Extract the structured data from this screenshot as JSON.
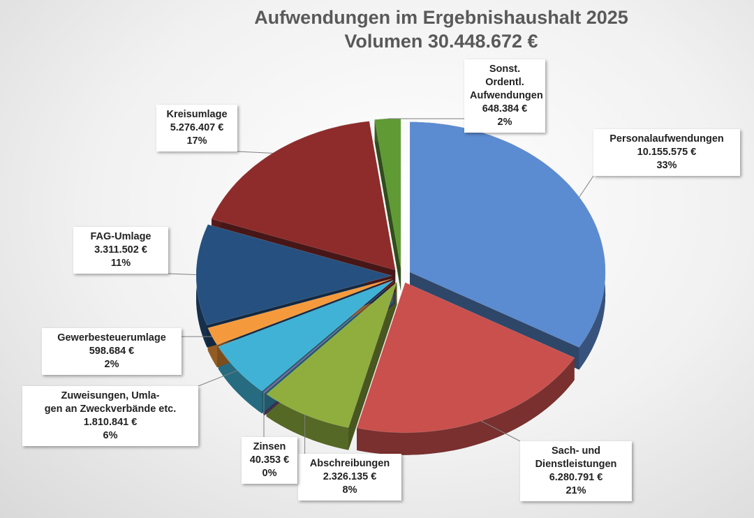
{
  "chart_data": {
    "type": "pie3d",
    "title": "Aufwendungen im Ergebnishaushalt 2025",
    "subtitle": "Volumen 30.448.672 €",
    "categories": [
      "Personalaufwendungen",
      "Sach- und\nDienstleistungen",
      "Abschreibungen",
      "Zinsen",
      "Zuweisungen, Umla-\ngen an Zweckverbände etc.",
      "Gewerbesteuerumlage",
      "FAG-Umlage",
      "Kreisumlage",
      "Sonst. Ordentl.\nAufwendungen"
    ],
    "values": [
      10155575,
      6280791,
      2326135,
      40353,
      1810841,
      598684,
      3311502,
      5276407,
      648384
    ],
    "value_labels": [
      "10.155.575 €",
      "6.280.791 €",
      "2.326.135 €",
      "40.353 €",
      "1.810.841 €",
      "598.684 €",
      "3.311.502 €",
      "5.276.407 €",
      "648.384 €"
    ],
    "percent_labels": [
      "33%",
      "21%",
      "8%",
      "0%",
      "6%",
      "2%",
      "11%",
      "17%",
      "2%"
    ],
    "colors": [
      "#5b8bd0",
      "#c9504d",
      "#8fae3e",
      "#7b5ba3",
      "#3fb2d6",
      "#f59a3c",
      "#25507f",
      "#8e2b2b",
      "#5f9a35"
    ]
  }
}
